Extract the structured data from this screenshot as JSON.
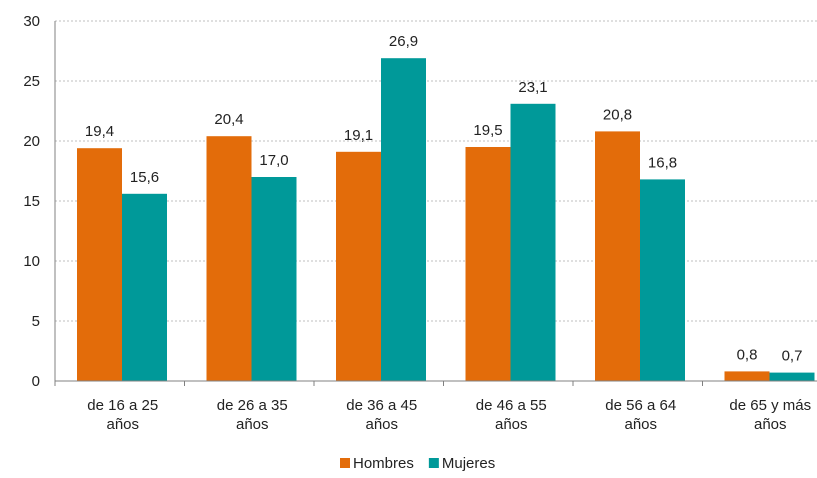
{
  "chart_data": {
    "type": "bar",
    "categories": [
      [
        "de 16 a 25",
        "años"
      ],
      [
        "de 26 a 35",
        "años"
      ],
      [
        "de 36 a 45",
        "años"
      ],
      [
        "de 46 a 55",
        "años"
      ],
      [
        "de 56 a 64",
        "años"
      ],
      [
        "de 65 y más",
        "años"
      ]
    ],
    "series": [
      {
        "name": "Hombres",
        "color": "#E36C0A",
        "values": [
          19.4,
          20.4,
          19.1,
          19.5,
          20.8,
          0.8
        ],
        "labels": [
          "19,4",
          "20,4",
          "19,1",
          "19,5",
          "20,8",
          "0,8"
        ]
      },
      {
        "name": "Mujeres",
        "color": "#009999",
        "values": [
          15.6,
          17.0,
          26.9,
          23.1,
          16.8,
          0.7
        ],
        "labels": [
          "15,6",
          "17,0",
          "26,9",
          "23,1",
          "16,8",
          "0,7"
        ]
      }
    ],
    "ylim": [
      0,
      30
    ],
    "yticks": [
      0,
      5,
      10,
      15,
      20,
      25,
      30
    ],
    "grid": true,
    "legend": "bottom-center"
  }
}
